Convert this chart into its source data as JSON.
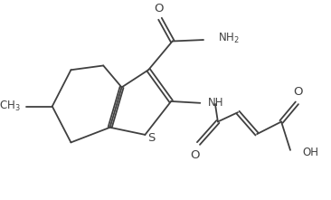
{
  "background_color": "#ffffff",
  "line_color": "#404040",
  "line_width": 1.3,
  "font_size": 8.5,
  "figsize": [
    3.66,
    2.21
  ],
  "dpi": 100,
  "xlim": [
    0,
    9.15
  ],
  "ylim": [
    0,
    5.525
  ]
}
